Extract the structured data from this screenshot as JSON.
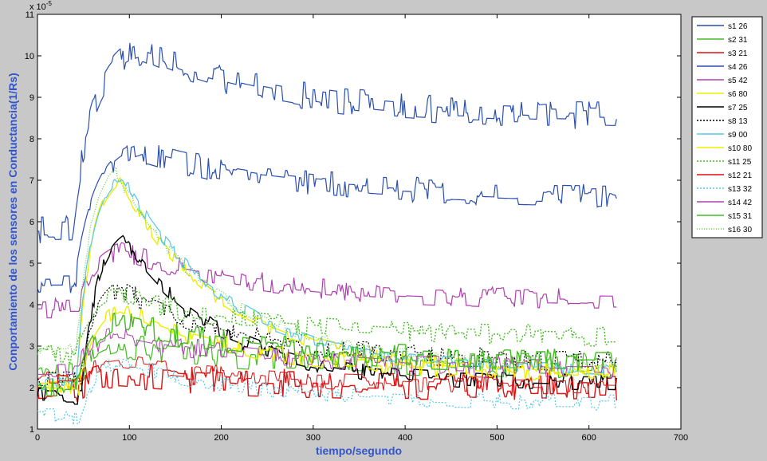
{
  "chart_data": {
    "type": "line",
    "xlabel": "tiempo/segundo",
    "ylabel": "Conportamiento de los sensores en Conductancia(1/Rs)",
    "exponent_label": "x 10",
    "exponent_power": "-5",
    "xlim": [
      0,
      700
    ],
    "ylim": [
      1,
      11
    ],
    "xticks": [
      0,
      100,
      200,
      300,
      400,
      500,
      600,
      700
    ],
    "yticks": [
      1,
      2,
      3,
      4,
      5,
      6,
      7,
      8,
      9,
      10,
      11
    ],
    "grid": false,
    "legend_position": "outside-right",
    "series": [
      {
        "name": "s1 26",
        "color": "#2a4fb0",
        "dash": "solid",
        "width": 1.2,
        "base": 5.8,
        "peak": 10.1,
        "peak_t": 115,
        "rise_start": 38,
        "end": 8.5,
        "noise": 0.35,
        "tau": 160,
        "rise_tau": 22
      },
      {
        "name": "s2 31",
        "color": "#44bb22",
        "dash": "solid",
        "width": 1.2,
        "base": 2.3,
        "peak": 3.0,
        "peak_t": 90,
        "rise_start": 45,
        "end": 2.5,
        "noise": 0.3,
        "tau": 180,
        "rise_tau": 18
      },
      {
        "name": "s3 21",
        "color": "#dd1111",
        "dash": "solid",
        "width": 1.4,
        "base": 2.0,
        "peak": 2.3,
        "peak_t": 90,
        "rise_start": 45,
        "end": 2.0,
        "noise": 0.35,
        "tau": 180,
        "rise_tau": 18
      },
      {
        "name": "s4 26",
        "color": "#2a4fb0",
        "dash": "solid",
        "width": 1.2,
        "base": 4.4,
        "peak": 7.7,
        "peak_t": 115,
        "rise_start": 40,
        "end": 6.6,
        "noise": 0.3,
        "tau": 160,
        "rise_tau": 22
      },
      {
        "name": "s5 42",
        "color": "#b040b0",
        "dash": "solid",
        "width": 1.2,
        "base": 3.9,
        "peak": 5.3,
        "peak_t": 90,
        "rise_start": 45,
        "end": 4.1,
        "noise": 0.25,
        "tau": 150,
        "rise_tau": 18
      },
      {
        "name": "s6 80",
        "color": "#eeee00",
        "dash": "solid",
        "width": 1.4,
        "base": 2.0,
        "peak": 7.0,
        "peak_t": 90,
        "rise_start": 42,
        "end": 2.4,
        "noise": 0.15,
        "tau": 110,
        "rise_tau": 16
      },
      {
        "name": "s7 25",
        "color": "#000000",
        "dash": "solid",
        "width": 1.4,
        "base": 1.8,
        "peak": 5.6,
        "peak_t": 92,
        "rise_start": 48,
        "end": 2.1,
        "noise": 0.2,
        "tau": 105,
        "rise_tau": 16
      },
      {
        "name": "s8 13",
        "color": "#000000",
        "dash": "2,2",
        "width": 1.2,
        "base": 2.2,
        "peak": 4.4,
        "peak_t": 90,
        "rise_start": 45,
        "end": 2.6,
        "noise": 0.25,
        "tau": 140,
        "rise_tau": 18
      },
      {
        "name": "s9 00",
        "color": "#55c8e8",
        "dash": "solid",
        "width": 1.2,
        "base": 2.1,
        "peak": 7.1,
        "peak_t": 92,
        "rise_start": 42,
        "end": 2.4,
        "noise": 0.15,
        "tau": 115,
        "rise_tau": 16
      },
      {
        "name": "s10 80",
        "color": "#eeee00",
        "dash": "solid",
        "width": 1.4,
        "base": 2.0,
        "peak": 3.9,
        "peak_t": 90,
        "rise_start": 45,
        "end": 2.3,
        "noise": 0.2,
        "tau": 150,
        "rise_tau": 18
      },
      {
        "name": "s11 25",
        "color": "#44bb22",
        "dash": "2,2",
        "width": 1.4,
        "base": 2.8,
        "peak": 4.2,
        "peak_t": 90,
        "rise_start": 40,
        "end": 3.2,
        "noise": 0.25,
        "tau": 170,
        "rise_tau": 18
      },
      {
        "name": "s12 21",
        "color": "#dd1111",
        "dash": "solid",
        "width": 1.0,
        "base": 2.2,
        "peak": 2.6,
        "peak_t": 90,
        "rise_start": 45,
        "end": 2.0,
        "noise": 0.2,
        "tau": 180,
        "rise_tau": 18
      },
      {
        "name": "s13 32",
        "color": "#55c8e8",
        "dash": "2,2",
        "width": 1.2,
        "base": 1.3,
        "peak": 2.6,
        "peak_t": 90,
        "rise_start": 45,
        "end": 1.6,
        "noise": 0.2,
        "tau": 160,
        "rise_tau": 18
      },
      {
        "name": "s14 42",
        "color": "#b040b0",
        "dash": "solid",
        "width": 1.0,
        "base": 2.5,
        "peak": 3.3,
        "peak_t": 90,
        "rise_start": 45,
        "end": 2.4,
        "noise": 0.25,
        "tau": 170,
        "rise_tau": 18
      },
      {
        "name": "s15 31",
        "color": "#44bb22",
        "dash": "solid",
        "width": 1.4,
        "base": 2.1,
        "peak": 3.6,
        "peak_t": 90,
        "rise_start": 45,
        "end": 2.6,
        "noise": 0.3,
        "tau": 170,
        "rise_tau": 18
      },
      {
        "name": "s16 30",
        "color": "#66cc44",
        "dash": "1,2",
        "width": 1.2,
        "base": 2.9,
        "peak": 7.2,
        "peak_t": 85,
        "rise_start": 42,
        "end": 2.5,
        "noise": 0.15,
        "tau": 115,
        "rise_tau": 16
      }
    ]
  }
}
